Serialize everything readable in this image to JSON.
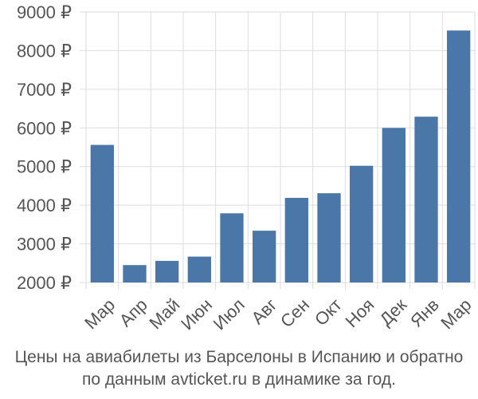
{
  "chart_data": {
    "type": "bar",
    "categories": [
      "Мар",
      "Апр",
      "Май",
      "Июн",
      "Июл",
      "Авг",
      "Сен",
      "Окт",
      "Ноя",
      "Дек",
      "Янв",
      "Мар"
    ],
    "values": [
      5560,
      2450,
      2560,
      2670,
      3790,
      3340,
      4190,
      4310,
      5020,
      6000,
      6290,
      8520
    ],
    "ylim": [
      2000,
      9000
    ],
    "y_ticks": [
      2000,
      3000,
      4000,
      5000,
      6000,
      7000,
      8000,
      9000
    ],
    "y_tick_suffix": " ₽",
    "grid": true,
    "bar_color": "#4a76a8",
    "title_lines": [
      "Цены на авиабилеты из Барселоны в Испанию и обратно",
      "по данным avticket.ru в динамике за год."
    ]
  }
}
